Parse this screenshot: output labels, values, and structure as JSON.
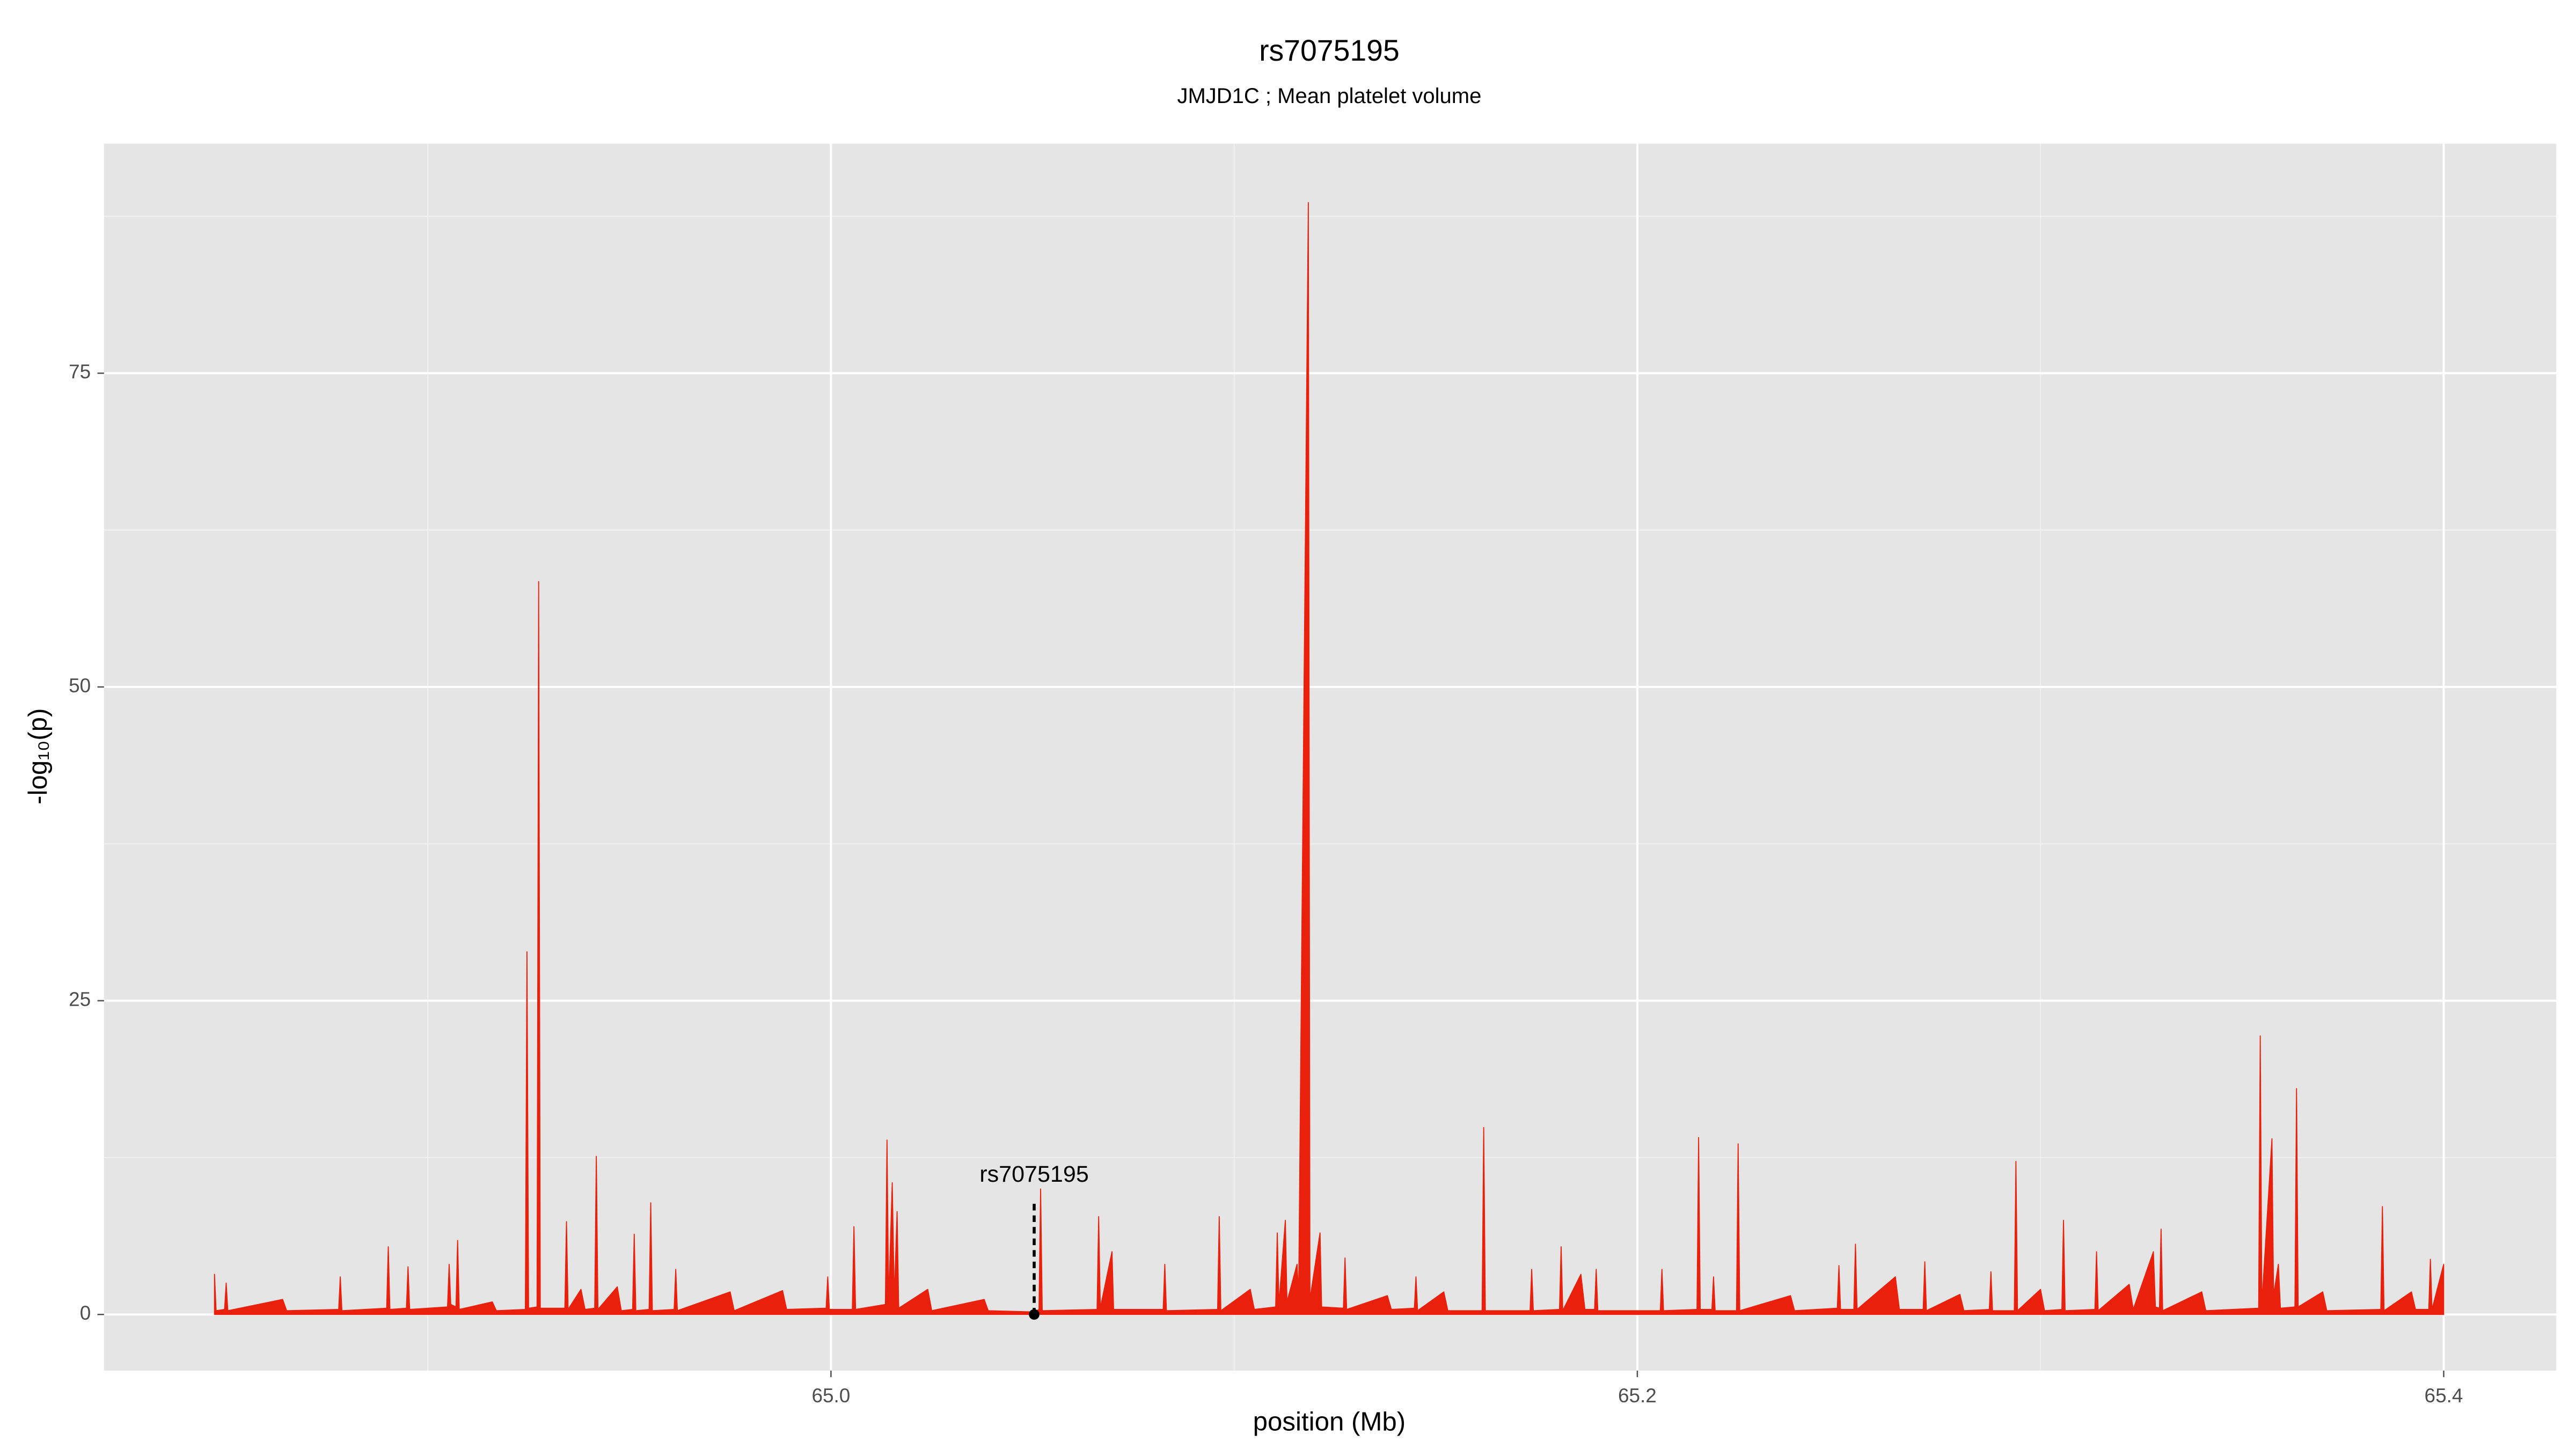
{
  "chart_data": {
    "type": "area",
    "title": "rs7075195",
    "subtitle": "JMJD1C ; Mean platelet volume",
    "xlabel": "position (Mb)",
    "ylabel": "-log₁₀(p)",
    "color": "#e8200c",
    "panel_color": "#e5e5e5",
    "grid": true,
    "xlim": [
      64.8197,
      65.4279
    ],
    "ylim": [
      -4.47,
      93.29
    ],
    "xticks": [
      {
        "value": 65,
        "label": "65.0"
      },
      65.2,
      65.4
    ],
    "yticks": [
      0,
      25,
      50,
      75
    ],
    "x_minor_grid": [
      64.9,
      65.1,
      65.3
    ],
    "y_minor_grid": [
      12.5,
      37.5,
      62.5,
      87.5
    ],
    "x": [
      64.8471,
      64.8475,
      64.8496,
      64.85,
      64.8504,
      64.864,
      64.865,
      64.8779,
      64.8783,
      64.8787,
      64.8898,
      64.8902,
      64.8906,
      64.8947,
      64.8951,
      64.8955,
      64.9049,
      64.9053,
      64.9057,
      64.907,
      64.9074,
      64.9078,
      64.916,
      64.917,
      64.9242,
      64.9246,
      64.925,
      64.9271,
      64.9275,
      64.9279,
      64.934,
      64.9344,
      64.9348,
      64.938,
      64.939,
      64.9414,
      64.9418,
      64.9422,
      64.947,
      64.948,
      64.9508,
      64.9512,
      64.9516,
      64.9549,
      64.9553,
      64.9557,
      64.9611,
      64.9615,
      64.9619,
      64.975,
      64.976,
      64.988,
      64.989,
      64.9988,
      64.9992,
      64.9996,
      65.0053,
      65.0057,
      65.0061,
      65.0135,
      65.0139,
      65.0143,
      65.0152,
      65.0157,
      65.0164,
      65.0168,
      65.024,
      65.025,
      65.038,
      65.039,
      65.0504,
      65.0516,
      65.052,
      65.0524,
      65.066,
      65.0664,
      65.0668,
      65.0697,
      65.0701,
      65.0824,
      65.0828,
      65.0832,
      65.0959,
      65.0963,
      65.0967,
      65.104,
      65.105,
      65.1103,
      65.1107,
      65.1111,
      65.1127,
      65.1131,
      65.1156,
      65.116,
      65.1184,
      65.1188,
      65.1213,
      65.1217,
      65.1271,
      65.1275,
      65.1279,
      65.138,
      65.139,
      65.1447,
      65.1451,
      65.1455,
      65.152,
      65.153,
      65.1615,
      65.1619,
      65.1623,
      65.1734,
      65.1738,
      65.1742,
      65.1807,
      65.1811,
      65.1815,
      65.186,
      65.187,
      65.1894,
      65.1898,
      65.1902,
      65.2057,
      65.2061,
      65.2065,
      65.2148,
      65.2152,
      65.2156,
      65.2185,
      65.2189,
      65.2193,
      65.2246,
      65.225,
      65.2254,
      65.238,
      65.239,
      65.2496,
      65.25,
      65.2504,
      65.2537,
      65.2541,
      65.2545,
      65.264,
      65.265,
      65.2709,
      65.2713,
      65.2717,
      65.28,
      65.281,
      65.2873,
      65.2877,
      65.2881,
      65.2935,
      65.2939,
      65.2943,
      65.3,
      65.301,
      65.3053,
      65.3057,
      65.3061,
      65.3135,
      65.3139,
      65.3143,
      65.322,
      65.323,
      65.328,
      65.3285,
      65.3295,
      65.3299,
      65.3303,
      65.34,
      65.341,
      65.3541,
      65.3545,
      65.3549,
      65.3574,
      65.3578,
      65.359,
      65.3595,
      65.3631,
      65.3635,
      65.3639,
      65.37,
      65.371,
      65.3844,
      65.3848,
      65.3852,
      65.392,
      65.393,
      65.3963,
      65.3967,
      65.3971,
      65.4
    ],
    "values": [
      3.2,
      0.3,
      0.4,
      2.5,
      0.3,
      1.2,
      0.3,
      0.4,
      3.0,
      0.3,
      0.5,
      5.4,
      0.4,
      0.5,
      3.8,
      0.4,
      0.6,
      4.0,
      0.8,
      0.6,
      5.9,
      0.4,
      1.0,
      0.3,
      0.4,
      28.9,
      0.5,
      0.6,
      58.4,
      0.5,
      0.5,
      7.4,
      0.4,
      2.0,
      0.4,
      0.5,
      12.6,
      0.4,
      2.2,
      0.3,
      0.4,
      6.4,
      0.3,
      0.4,
      8.9,
      0.3,
      0.4,
      3.6,
      0.3,
      1.8,
      0.3,
      1.9,
      0.4,
      0.5,
      3.0,
      0.4,
      0.4,
      7.0,
      0.4,
      0.8,
      13.9,
      1.0,
      10.5,
      1.2,
      8.2,
      0.5,
      2.0,
      0.3,
      1.2,
      0.3,
      0.2,
      0.4,
      10.0,
      0.3,
      0.4,
      7.8,
      0.5,
      5.0,
      0.4,
      0.4,
      4.0,
      0.3,
      0.4,
      7.8,
      0.3,
      2.0,
      0.4,
      0.6,
      6.5,
      0.8,
      7.5,
      1.0,
      4.0,
      1.5,
      88.6,
      1.2,
      6.5,
      0.6,
      0.5,
      4.5,
      0.4,
      1.5,
      0.4,
      0.5,
      3.0,
      0.3,
      1.8,
      0.3,
      0.3,
      14.9,
      0.3,
      0.3,
      3.6,
      0.3,
      0.4,
      5.4,
      0.3,
      3.2,
      0.4,
      0.4,
      3.6,
      0.3,
      0.3,
      3.6,
      0.3,
      0.4,
      14.1,
      0.4,
      0.4,
      3.0,
      0.3,
      0.3,
      13.6,
      0.3,
      1.5,
      0.3,
      0.5,
      3.9,
      0.4,
      0.4,
      5.6,
      0.4,
      3.0,
      0.4,
      0.4,
      4.2,
      0.3,
      1.6,
      0.3,
      0.4,
      3.4,
      0.3,
      0.3,
      12.2,
      0.3,
      2.0,
      0.3,
      0.4,
      7.5,
      0.3,
      0.4,
      5.0,
      0.3,
      2.4,
      0.4,
      5.0,
      0.6,
      0.5,
      6.8,
      0.3,
      1.8,
      0.3,
      0.5,
      22.2,
      0.8,
      14.0,
      1.5,
      4.0,
      0.5,
      0.6,
      18.0,
      0.6,
      1.8,
      0.3,
      0.4,
      8.6,
      0.3,
      1.8,
      0.4,
      0.4,
      4.4,
      0.4,
      4.0
    ],
    "annotations": [
      {
        "text": "rs7075195",
        "x": 65.0504,
        "y": 0
      }
    ]
  }
}
